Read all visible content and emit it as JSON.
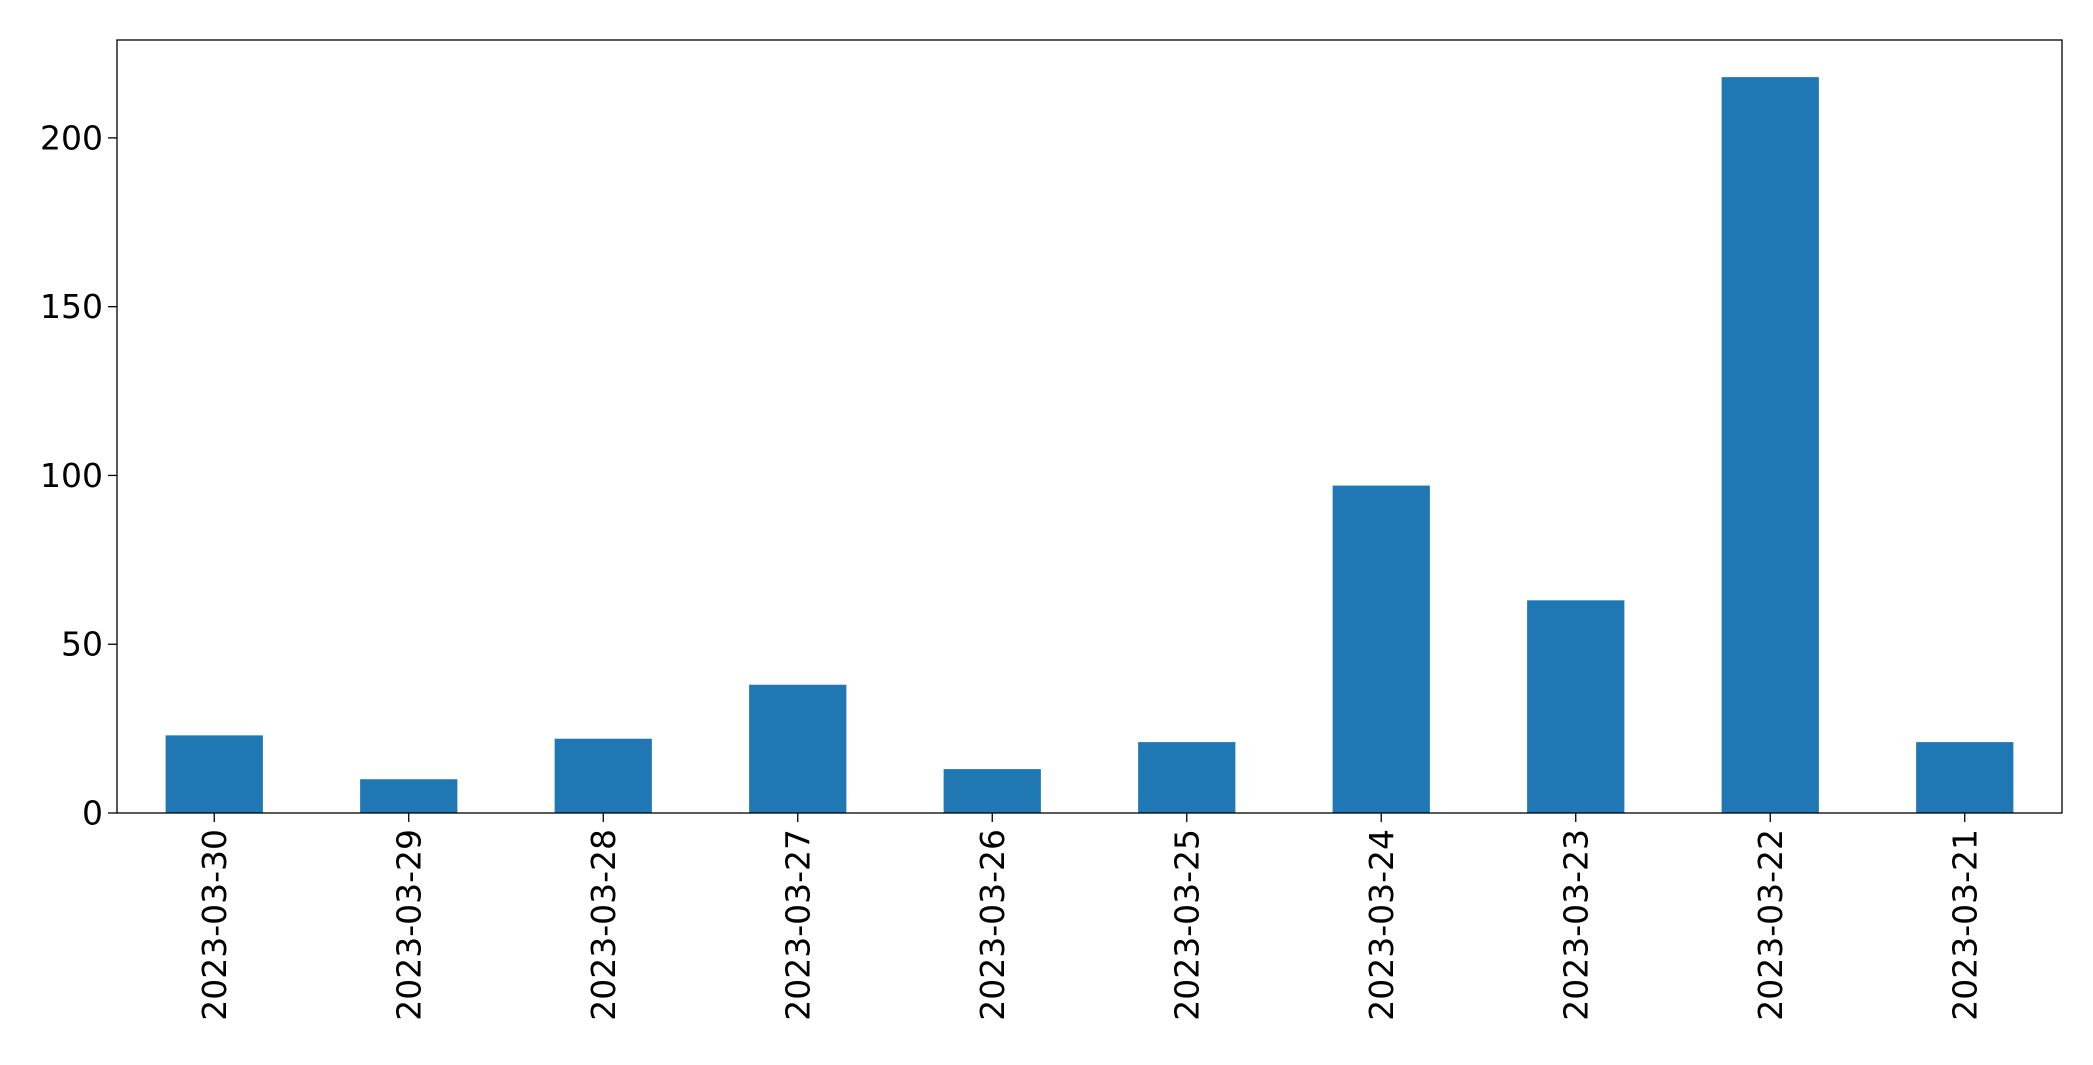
{
  "chart_data": {
    "type": "bar",
    "title": "",
    "xlabel": "",
    "ylabel": "",
    "categories": [
      "2023-03-30",
      "2023-03-29",
      "2023-03-28",
      "2023-03-27",
      "2023-03-26",
      "2023-03-25",
      "2023-03-24",
      "2023-03-23",
      "2023-03-22",
      "2023-03-21"
    ],
    "values": [
      23,
      10,
      22,
      38,
      13,
      21,
      97,
      63,
      218,
      21
    ],
    "ylim": [
      0,
      229
    ],
    "yticks": [
      0,
      50,
      100,
      150,
      200
    ],
    "bar_color": "#1f77b4",
    "grid": false,
    "legend": "none"
  }
}
